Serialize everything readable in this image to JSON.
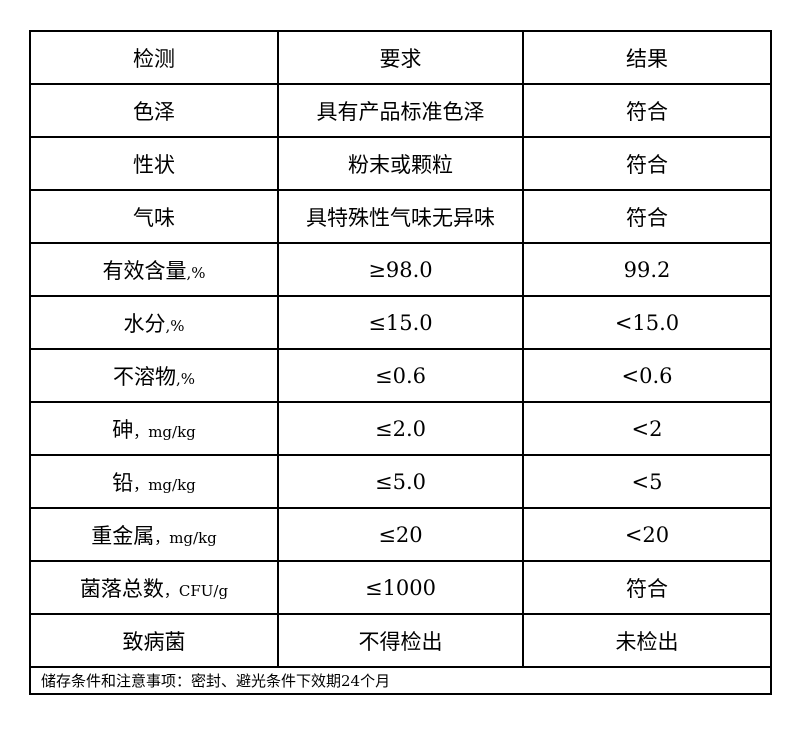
{
  "headers": [
    "检测",
    "要求",
    "结果"
  ],
  "rows": [
    [
      "色泽",
      "",
      "具有产品标准色泽",
      "符合"
    ],
    [
      "性状",
      "",
      "粉末或颗粒",
      "符合"
    ],
    [
      "气味",
      "",
      "具特殊性气味无异味",
      "符合"
    ],
    [
      "有效含量",
      ",%",
      "≥98.0",
      "99.2"
    ],
    [
      "水分",
      ",%",
      "≤15.0",
      "<15.0"
    ],
    [
      "不溶物",
      ",%",
      "≤0.6",
      "<0.6"
    ],
    [
      "砷",
      "，mg/kg",
      "≤2.0",
      "<2"
    ],
    [
      "铅",
      "，mg/kg",
      "≤5.0",
      "<5"
    ],
    [
      "重金属",
      "，mg/kg",
      "≤20",
      "<20"
    ],
    [
      "菌落总数",
      "，CFU/g",
      "≤1000",
      "符合"
    ],
    [
      "致病菌",
      "",
      "不得检出",
      "未检出"
    ]
  ],
  "footer": "储存条件和注意事项：密封、避光条件下效期24个月"
}
